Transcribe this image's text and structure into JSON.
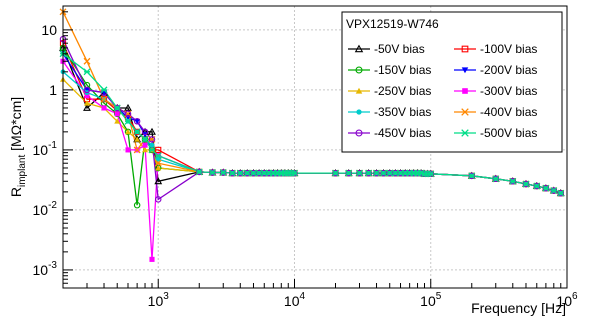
{
  "chart_data": {
    "type": "line",
    "title": "",
    "xlabel": "Frequency [Hz]",
    "ylabel_main": "R",
    "ylabel_sub": "implant",
    "ylabel_unit": " [MΩ*cm]",
    "xscale": "log",
    "yscale": "log",
    "xlim": [
      200,
      1000000
    ],
    "ylim": [
      0.0005,
      25
    ],
    "grid": true,
    "legend": {
      "placement": "top-right",
      "title": "VPX12519-W746",
      "columns": 2
    },
    "x_ticks": [
      {
        "value": 1000,
        "base": "10",
        "exp": "3"
      },
      {
        "value": 10000,
        "base": "10",
        "exp": "4"
      },
      {
        "value": 100000,
        "base": "10",
        "exp": "5"
      },
      {
        "value": 1000000,
        "base": "10",
        "exp": "6"
      }
    ],
    "y_ticks": [
      {
        "value": 0.001,
        "base": "10",
        "exp": "-3"
      },
      {
        "value": 0.01,
        "base": "10",
        "exp": "-2"
      },
      {
        "value": 0.1,
        "base": "10",
        "exp": "-1"
      },
      {
        "value": 1,
        "base": "1",
        "exp": ""
      },
      {
        "value": 10,
        "base": "10",
        "exp": ""
      }
    ],
    "common_x": [
      2000,
      2500,
      3000,
      3500,
      4000,
      4500,
      5000,
      5500,
      6000,
      6500,
      7000,
      7500,
      8000,
      8500,
      9000,
      9500,
      10000,
      20000,
      25000,
      30000,
      35000,
      40000,
      45000,
      50000,
      55000,
      60000,
      65000,
      70000,
      75000,
      80000,
      85000,
      90000,
      95000,
      100000,
      200000,
      300000,
      400000,
      500000,
      600000,
      700000,
      800000,
      900000
    ],
    "common_y": [
      0.043,
      0.042,
      0.042,
      0.041,
      0.041,
      0.041,
      0.041,
      0.041,
      0.041,
      0.041,
      0.041,
      0.041,
      0.041,
      0.041,
      0.041,
      0.041,
      0.041,
      0.041,
      0.041,
      0.041,
      0.041,
      0.041,
      0.041,
      0.041,
      0.041,
      0.041,
      0.041,
      0.041,
      0.041,
      0.041,
      0.041,
      0.04,
      0.04,
      0.04,
      0.037,
      0.033,
      0.03,
      0.027,
      0.025,
      0.023,
      0.021,
      0.019
    ],
    "series": [
      {
        "name": "-50V bias",
        "color": "#000000",
        "marker": "triangle-open",
        "x": [
          200,
          300,
          400,
          500,
          600,
          700,
          800,
          900,
          1000
        ],
        "y": [
          5,
          0.5,
          0.9,
          0.5,
          0.5,
          0.15,
          0.2,
          0.2,
          0.03
        ]
      },
      {
        "name": "-100V bias",
        "color": "#ff0000",
        "marker": "square-open",
        "x": [
          200,
          300,
          400,
          500,
          600,
          700,
          800,
          900,
          1000
        ],
        "y": [
          6,
          0.7,
          0.7,
          0.45,
          0.35,
          0.2,
          0.15,
          0.1,
          0.1
        ]
      },
      {
        "name": "-150V bias",
        "color": "#00aa00",
        "marker": "circle-open",
        "x": [
          200,
          300,
          400,
          500,
          600,
          700,
          800,
          900,
          1000
        ],
        "y": [
          5,
          1.2,
          0.6,
          0.4,
          0.2,
          0.012,
          0.15,
          0.1,
          0.05
        ]
      },
      {
        "name": "-200V bias",
        "color": "#0000ff",
        "marker": "triangle-down",
        "x": [
          200,
          300,
          400,
          500,
          600,
          700,
          800,
          900,
          1000
        ],
        "y": [
          4,
          1,
          0.9,
          0.5,
          0.35,
          0.3,
          0.18,
          0.1,
          0.08
        ]
      },
      {
        "name": "-250V bias",
        "color": "#e6b800",
        "marker": "triangle-up",
        "x": [
          200,
          300,
          400,
          500,
          600,
          700,
          800,
          900,
          1000
        ],
        "y": [
          1.5,
          0.6,
          0.5,
          0.3,
          0.2,
          0.15,
          0.1,
          0.1,
          0.05
        ]
      },
      {
        "name": "-300V bias",
        "color": "#ff00ff",
        "marker": "square-filled",
        "x": [
          200,
          300,
          400,
          500,
          600,
          700,
          800,
          900,
          1000
        ],
        "y": [
          3,
          0.8,
          0.5,
          0.4,
          0.1,
          0.1,
          0.12,
          0.0015,
          0.08
        ]
      },
      {
        "name": "-350V bias",
        "color": "#00cccc",
        "marker": "circle-filled",
        "x": [
          200,
          300,
          400,
          500,
          600,
          700,
          800,
          900,
          1000
        ],
        "y": [
          2,
          0.9,
          0.7,
          0.5,
          0.3,
          0.2,
          0.15,
          0.12,
          0.07
        ]
      },
      {
        "name": "-400V bias",
        "color": "#ff8800",
        "marker": "cross",
        "x": [
          200,
          300,
          400,
          500,
          600,
          700,
          800,
          900,
          1000
        ],
        "y": [
          20,
          3,
          0.7,
          0.5,
          0.4,
          0.1,
          0.15,
          0.15,
          0.06
        ]
      },
      {
        "name": "-450V bias",
        "color": "#8800cc",
        "marker": "circle-open",
        "x": [
          200,
          300,
          400,
          500,
          600,
          700,
          800,
          900,
          1000
        ],
        "y": [
          7,
          1,
          0.9,
          0.5,
          0.4,
          0.3,
          0.2,
          0.15,
          0.015
        ]
      },
      {
        "name": "-500V bias",
        "color": "#00dd88",
        "marker": "star",
        "x": [
          200,
          300,
          400,
          500,
          600,
          700,
          800,
          900,
          1000
        ],
        "y": [
          4,
          2,
          1,
          0.5,
          0.3,
          0.2,
          0.15,
          0.1,
          0.08
        ]
      }
    ]
  }
}
